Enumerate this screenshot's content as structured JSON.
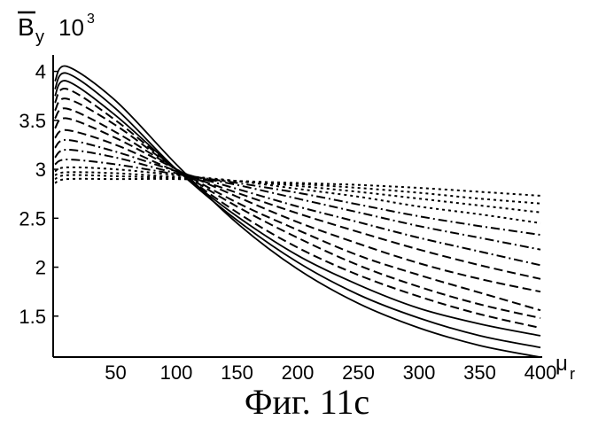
{
  "chart_data": {
    "type": "line",
    "title": "",
    "ylabel": {
      "symbol": "B",
      "subscript": "y",
      "multiplier": "10",
      "exponent": "3"
    },
    "xlabel": {
      "symbol": "μ",
      "subscript": "r"
    },
    "xlim": [
      0,
      400
    ],
    "ylim": [
      1.1,
      4.15
    ],
    "xticks": [
      50,
      100,
      150,
      200,
      250,
      300,
      350,
      400
    ],
    "yticks": [
      1.5,
      2,
      2.5,
      3,
      3.5,
      4
    ],
    "ytick_labels": [
      "1.5",
      "2",
      "2.5",
      "3",
      "3.5",
      "4"
    ],
    "xtick_labels": [
      "50",
      "100",
      "150",
      "200",
      "250",
      "300",
      "350",
      "400"
    ],
    "grid": false,
    "series": [
      {
        "style": "solid",
        "x": [
          0,
          10,
          50,
          100,
          150,
          200,
          250,
          300,
          350,
          400
        ],
        "y": [
          3.9,
          4.05,
          3.7,
          3.05,
          2.45,
          1.98,
          1.63,
          1.38,
          1.2,
          1.08
        ]
      },
      {
        "style": "solid",
        "x": [
          0,
          10,
          50,
          100,
          150,
          200,
          250,
          300,
          350,
          400
        ],
        "y": [
          3.82,
          3.98,
          3.62,
          3.0,
          2.48,
          2.05,
          1.72,
          1.48,
          1.3,
          1.18
        ]
      },
      {
        "style": "solid",
        "x": [
          0,
          10,
          50,
          100,
          150,
          200,
          250,
          300,
          350,
          400
        ],
        "y": [
          3.75,
          3.9,
          3.55,
          3.0,
          2.52,
          2.12,
          1.82,
          1.58,
          1.42,
          1.3
        ]
      },
      {
        "style": "dashed",
        "x": [
          0,
          10,
          50,
          100,
          150,
          200,
          250,
          300,
          350,
          400
        ],
        "y": [
          3.68,
          3.82,
          3.5,
          3.0,
          2.56,
          2.2,
          1.92,
          1.7,
          1.52,
          1.38
        ]
      },
      {
        "style": "dashed",
        "x": [
          0,
          10,
          50,
          100,
          150,
          200,
          250,
          300,
          350,
          400
        ],
        "y": [
          3.6,
          3.72,
          3.45,
          3.0,
          2.62,
          2.3,
          2.02,
          1.8,
          1.62,
          1.48
        ]
      },
      {
        "style": "dashed",
        "x": [
          0,
          10,
          50,
          100,
          150,
          200,
          250,
          300,
          350,
          400
        ],
        "y": [
          3.52,
          3.62,
          3.38,
          3.0,
          2.66,
          2.38,
          2.12,
          1.92,
          1.74,
          1.56
        ]
      },
      {
        "style": "dashed",
        "x": [
          0,
          10,
          50,
          100,
          150,
          200,
          250,
          300,
          350,
          400
        ],
        "y": [
          3.42,
          3.52,
          3.32,
          3.0,
          2.72,
          2.46,
          2.24,
          2.04,
          1.88,
          1.75
        ]
      },
      {
        "style": "dashed",
        "x": [
          0,
          10,
          50,
          100,
          150,
          200,
          250,
          300,
          350,
          400
        ],
        "y": [
          3.32,
          3.4,
          3.25,
          2.98,
          2.76,
          2.55,
          2.36,
          2.18,
          2.02,
          1.88
        ]
      },
      {
        "style": "dashdot",
        "x": [
          0,
          10,
          50,
          100,
          150,
          200,
          250,
          300,
          350,
          400
        ],
        "y": [
          3.22,
          3.3,
          3.18,
          2.98,
          2.8,
          2.62,
          2.46,
          2.3,
          2.16,
          2.02
        ]
      },
      {
        "style": "dashdot",
        "x": [
          0,
          10,
          50,
          100,
          150,
          200,
          250,
          300,
          350,
          400
        ],
        "y": [
          3.12,
          3.2,
          3.12,
          2.96,
          2.84,
          2.7,
          2.56,
          2.42,
          2.3,
          2.18
        ]
      },
      {
        "style": "dashdot",
        "x": [
          0,
          10,
          50,
          100,
          150,
          200,
          250,
          300,
          350,
          400
        ],
        "y": [
          3.05,
          3.1,
          3.05,
          2.95,
          2.86,
          2.76,
          2.64,
          2.52,
          2.42,
          2.33
        ]
      },
      {
        "style": "dotted",
        "x": [
          0,
          10,
          50,
          100,
          150,
          200,
          250,
          300,
          350,
          400
        ],
        "y": [
          2.98,
          3.02,
          3.0,
          2.94,
          2.88,
          2.8,
          2.72,
          2.62,
          2.54,
          2.45
        ]
      },
      {
        "style": "dotted",
        "x": [
          0,
          10,
          50,
          100,
          150,
          200,
          250,
          300,
          350,
          400
        ],
        "y": [
          2.94,
          2.97,
          2.96,
          2.92,
          2.88,
          2.83,
          2.77,
          2.7,
          2.63,
          2.56
        ]
      },
      {
        "style": "dotted",
        "x": [
          0,
          10,
          50,
          100,
          150,
          200,
          250,
          300,
          350,
          400
        ],
        "y": [
          2.9,
          2.94,
          2.93,
          2.91,
          2.88,
          2.85,
          2.81,
          2.76,
          2.7,
          2.65
        ]
      },
      {
        "style": "dotted",
        "x": [
          0,
          10,
          50,
          100,
          150,
          200,
          250,
          300,
          350,
          400
        ],
        "y": [
          2.86,
          2.9,
          2.9,
          2.9,
          2.88,
          2.86,
          2.84,
          2.81,
          2.77,
          2.73
        ]
      }
    ]
  },
  "caption": "Фиг. 11с"
}
